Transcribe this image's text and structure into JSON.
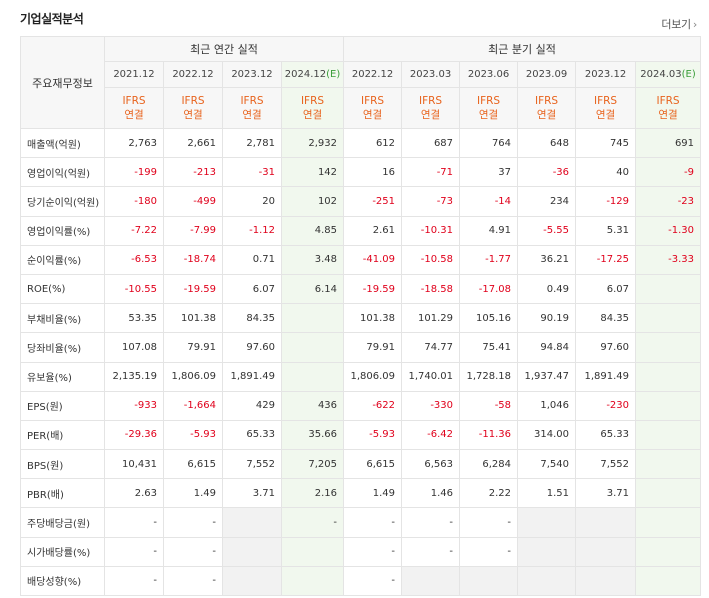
{
  "title": "기업실적분석",
  "more_label": "더보기",
  "more_icon": "chevron-right-icon",
  "colors": {
    "negative": "#e0001b",
    "ifrs": "#e8631d",
    "estimate_bg": "#f1f8ee",
    "estimate_mark": "#3a9e3a"
  },
  "header": {
    "row_label": "주요재무정보",
    "annual_group": "최근 연간 실적",
    "quarter_group": "최근 분기 실적",
    "ifrs_line1": "IFRS",
    "ifrs_line2": "연결",
    "est_mark": "(E)",
    "periods": [
      {
        "label": "2021.12",
        "est": false
      },
      {
        "label": "2022.12",
        "est": false
      },
      {
        "label": "2023.12",
        "est": false
      },
      {
        "label": "2024.12",
        "est": true
      },
      {
        "label": "2022.12",
        "est": false
      },
      {
        "label": "2023.03",
        "est": false
      },
      {
        "label": "2023.06",
        "est": false
      },
      {
        "label": "2023.09",
        "est": false
      },
      {
        "label": "2023.12",
        "est": false
      },
      {
        "label": "2024.03",
        "est": true
      }
    ]
  },
  "rows": [
    {
      "label": "매출액(억원)",
      "values": [
        "2,763",
        "2,661",
        "2,781",
        "2,932",
        "612",
        "687",
        "764",
        "648",
        "745",
        "691"
      ]
    },
    {
      "label": "영업이익(억원)",
      "values": [
        "-199",
        "-213",
        "-31",
        "142",
        "16",
        "-71",
        "37",
        "-36",
        "40",
        "-9"
      ]
    },
    {
      "label": "당기순이익(억원)",
      "values": [
        "-180",
        "-499",
        "20",
        "102",
        "-251",
        "-73",
        "-14",
        "234",
        "-129",
        "-23"
      ]
    },
    {
      "label": "영업이익률(%)",
      "values": [
        "-7.22",
        "-7.99",
        "-1.12",
        "4.85",
        "2.61",
        "-10.31",
        "4.91",
        "-5.55",
        "5.31",
        "-1.30"
      ]
    },
    {
      "label": "순이익률(%)",
      "values": [
        "-6.53",
        "-18.74",
        "0.71",
        "3.48",
        "-41.09",
        "-10.58",
        "-1.77",
        "36.21",
        "-17.25",
        "-3.33"
      ]
    },
    {
      "label": "ROE(%)",
      "values": [
        "-10.55",
        "-19.59",
        "6.07",
        "6.14",
        "-19.59",
        "-18.58",
        "-17.08",
        "0.49",
        "6.07",
        ""
      ]
    },
    {
      "label": "부채비율(%)",
      "values": [
        "53.35",
        "101.38",
        "84.35",
        "",
        "101.38",
        "101.29",
        "105.16",
        "90.19",
        "84.35",
        ""
      ]
    },
    {
      "label": "당좌비율(%)",
      "values": [
        "107.08",
        "79.91",
        "97.60",
        "",
        "79.91",
        "74.77",
        "75.41",
        "94.84",
        "97.60",
        ""
      ]
    },
    {
      "label": "유보율(%)",
      "values": [
        "2,135.19",
        "1,806.09",
        "1,891.49",
        "",
        "1,806.09",
        "1,740.01",
        "1,728.18",
        "1,937.47",
        "1,891.49",
        ""
      ]
    },
    {
      "label": "EPS(원)",
      "values": [
        "-933",
        "-1,664",
        "429",
        "436",
        "-622",
        "-330",
        "-58",
        "1,046",
        "-230",
        ""
      ]
    },
    {
      "label": "PER(배)",
      "values": [
        "-29.36",
        "-5.93",
        "65.33",
        "35.66",
        "-5.93",
        "-6.42",
        "-11.36",
        "314.00",
        "65.33",
        ""
      ]
    },
    {
      "label": "BPS(원)",
      "values": [
        "10,431",
        "6,615",
        "7,552",
        "7,205",
        "6,615",
        "6,563",
        "6,284",
        "7,540",
        "7,552",
        ""
      ]
    },
    {
      "label": "PBR(배)",
      "values": [
        "2.63",
        "1.49",
        "3.71",
        "2.16",
        "1.49",
        "1.46",
        "2.22",
        "1.51",
        "3.71",
        ""
      ]
    },
    {
      "label": "주당배당금(원)",
      "values": [
        "-",
        "-",
        "",
        "-",
        "-",
        "-",
        "-",
        "",
        "",
        ""
      ]
    },
    {
      "label": "시가배당률(%)",
      "values": [
        "-",
        "-",
        "",
        "",
        "-",
        "-",
        "-",
        "",
        "",
        ""
      ]
    },
    {
      "label": "배당성향(%)",
      "values": [
        "-",
        "-",
        "",
        "",
        "-",
        "",
        "",
        "",
        "",
        ""
      ]
    }
  ]
}
